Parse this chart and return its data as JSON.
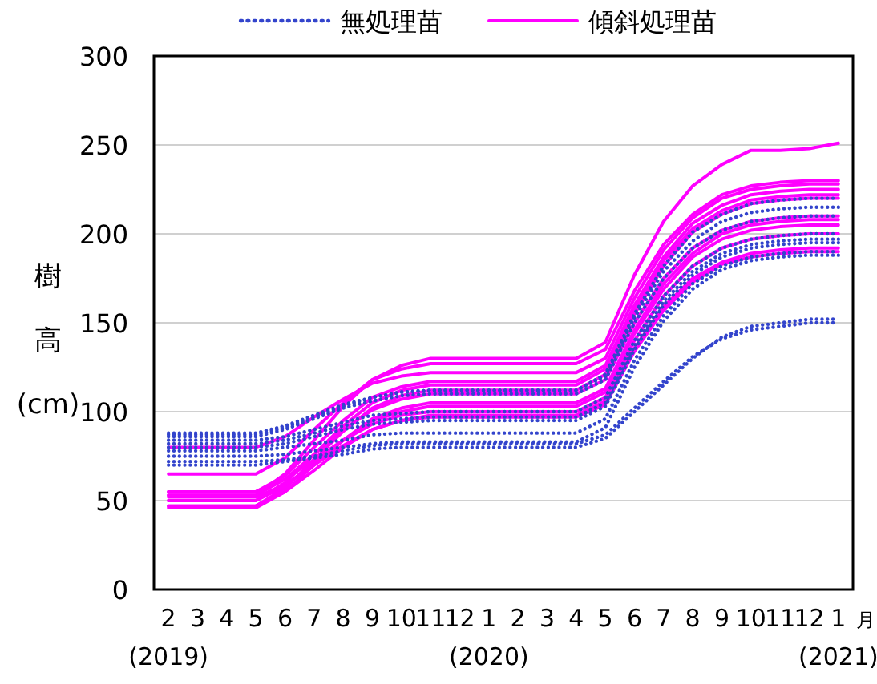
{
  "chart_data": {
    "type": "line",
    "ylabel": "樹高(cm)",
    "annotations": [
      "月"
    ],
    "categories": [
      "2\n(2019)",
      "3",
      "4",
      "5",
      "6",
      "7",
      "8",
      "9",
      "10",
      "11",
      "12",
      "1\n(2020)",
      "2",
      "3",
      "4",
      "5",
      "6",
      "7",
      "8",
      "9",
      "10",
      "11",
      "12",
      "1\n(2021)"
    ],
    "ylim": [
      0,
      300
    ],
    "yticks": [
      0,
      50,
      100,
      150,
      200,
      250,
      300
    ],
    "grid": "y",
    "legend": "top",
    "series": [
      {
        "name": "無処理苗",
        "color": "#3344cc",
        "line_style": "dotted",
        "values": [
          88,
          88,
          88,
          88,
          92,
          98,
          104,
          108,
          111,
          112,
          112,
          112,
          112,
          112,
          112,
          120,
          153,
          179,
          196,
          207,
          212,
          214,
          215,
          215
        ]
      },
      {
        "color": "#3344cc",
        "line_style": "dotted",
        "values": [
          86,
          86,
          86,
          86,
          90,
          96,
          102,
          106,
          109,
          110,
          110,
          110,
          110,
          110,
          110,
          118,
          150,
          175,
          192,
          202,
          207,
          209,
          210,
          210
        ]
      },
      {
        "color": "#3344cc",
        "line_style": "dotted",
        "values": [
          84,
          84,
          84,
          84,
          86,
          90,
          94,
          98,
          99,
          100,
          100,
          100,
          100,
          100,
          100,
          108,
          140,
          165,
          182,
          192,
          197,
          199,
          200,
          200
        ]
      },
      {
        "color": "#3344cc",
        "line_style": "dotted",
        "values": [
          82,
          82,
          82,
          82,
          84,
          88,
          92,
          95,
          96,
          97,
          97,
          97,
          97,
          97,
          97,
          105,
          137,
          162,
          179,
          189,
          194,
          196,
          197,
          197
        ]
      },
      {
        "color": "#3344cc",
        "line_style": "dotted",
        "values": [
          80,
          80,
          80,
          80,
          82,
          86,
          90,
          93,
          94,
          95,
          95,
          95,
          95,
          95,
          95,
          103,
          135,
          160,
          177,
          187,
          192,
          194,
          195,
          195
        ]
      },
      {
        "color": "#3344cc",
        "line_style": "dotted",
        "values": [
          78,
          78,
          78,
          78,
          80,
          82,
          84,
          87,
          88,
          88,
          88,
          88,
          88,
          88,
          88,
          96,
          129,
          154,
          172,
          182,
          187,
          189,
          190,
          190
        ]
      },
      {
        "color": "#3344cc",
        "line_style": "dotted",
        "values": [
          75,
          75,
          75,
          75,
          76,
          78,
          80,
          82,
          83,
          83,
          83,
          83,
          83,
          83,
          83,
          91,
          125,
          151,
          169,
          180,
          185,
          187,
          188,
          188
        ]
      },
      {
        "color": "#3344cc",
        "line_style": "dotted",
        "values": [
          70,
          70,
          70,
          70,
          72,
          74,
          76,
          79,
          80,
          80,
          80,
          80,
          80,
          80,
          80,
          85,
          100,
          115,
          130,
          142,
          148,
          150,
          152,
          152
        ]
      },
      {
        "color": "#3344cc",
        "line_style": "dotted",
        "values": [
          72,
          72,
          72,
          72,
          73,
          75,
          78,
          81,
          82,
          82,
          82,
          82,
          82,
          82,
          82,
          87,
          102,
          117,
          131,
          141,
          146,
          148,
          150,
          150
        ]
      },
      {
        "color": "#3344cc",
        "line_style": "dotted",
        "values": [
          87,
          87,
          87,
          87,
          91,
          97,
          103,
          108,
          111,
          112,
          112,
          112,
          112,
          112,
          112,
          121,
          155,
          182,
          201,
          211,
          217,
          219,
          220,
          220
        ]
      },
      {
        "name": "傾斜処理苗",
        "color": "#ff00ff",
        "line_style": "solid",
        "values": [
          53,
          53,
          53,
          53,
          65,
          84,
          103,
          118,
          126,
          130,
          130,
          130,
          130,
          130,
          130,
          139,
          177,
          207,
          227,
          239,
          247,
          247,
          248,
          251
        ]
      },
      {
        "color": "#ff00ff",
        "line_style": "solid",
        "values": [
          65,
          65,
          65,
          65,
          74,
          90,
          105,
          118,
          124,
          127,
          127,
          127,
          127,
          127,
          127,
          135,
          168,
          194,
          211,
          222,
          227,
          229,
          230,
          230
        ]
      },
      {
        "color": "#ff00ff",
        "line_style": "solid",
        "values": [
          80,
          80,
          80,
          80,
          86,
          97,
          107,
          116,
          120,
          122,
          122,
          122,
          122,
          122,
          122,
          130,
          164,
          191,
          209,
          220,
          225,
          227,
          228,
          228
        ]
      },
      {
        "color": "#ff00ff",
        "line_style": "solid",
        "values": [
          55,
          55,
          55,
          55,
          64,
          80,
          95,
          108,
          114,
          117,
          117,
          117,
          117,
          117,
          117,
          126,
          160,
          187,
          206,
          216,
          222,
          224,
          225,
          225
        ]
      },
      {
        "color": "#ff00ff",
        "line_style": "solid",
        "values": [
          50,
          50,
          50,
          50,
          60,
          76,
          92,
          105,
          112,
          115,
          115,
          115,
          115,
          115,
          115,
          124,
          158,
          185,
          203,
          213,
          219,
          221,
          222,
          222
        ]
      },
      {
        "color": "#ff00ff",
        "line_style": "solid",
        "values": [
          47,
          47,
          47,
          47,
          57,
          73,
          89,
          102,
          109,
          112,
          112,
          112,
          112,
          112,
          112,
          121,
          155,
          182,
          201,
          211,
          217,
          219,
          220,
          220
        ]
      },
      {
        "color": "#ff00ff",
        "line_style": "solid",
        "values": [
          53,
          53,
          53,
          53,
          62,
          76,
          90,
          101,
          107,
          110,
          110,
          110,
          110,
          110,
          110,
          118,
          150,
          175,
          192,
          202,
          207,
          209,
          210,
          210
        ]
      },
      {
        "color": "#ff00ff",
        "line_style": "solid",
        "values": [
          46,
          46,
          46,
          46,
          55,
          70,
          84,
          96,
          102,
          105,
          105,
          105,
          105,
          105,
          105,
          113,
          146,
          172,
          189,
          200,
          205,
          207,
          208,
          208
        ]
      },
      {
        "color": "#ff00ff",
        "line_style": "solid",
        "values": [
          50,
          50,
          50,
          50,
          58,
          71,
          84,
          95,
          100,
          103,
          103,
          103,
          103,
          103,
          103,
          111,
          144,
          169,
          187,
          197,
          202,
          204,
          205,
          205
        ]
      },
      {
        "color": "#ff00ff",
        "line_style": "solid",
        "values": [
          55,
          55,
          55,
          55,
          62,
          73,
          84,
          93,
          98,
          100,
          100,
          100,
          100,
          100,
          100,
          108,
          140,
          165,
          182,
          192,
          197,
          199,
          200,
          200
        ]
      },
      {
        "color": "#ff00ff",
        "line_style": "solid",
        "values": [
          47,
          47,
          47,
          47,
          55,
          67,
          80,
          90,
          95,
          98,
          98,
          98,
          98,
          98,
          98,
          106,
          136,
          159,
          175,
          184,
          189,
          191,
          192,
          192
        ]
      },
      {
        "color": "#ff00ff",
        "line_style": "solid",
        "values": [
          52,
          52,
          52,
          52,
          59,
          70,
          81,
          90,
          95,
          97,
          97,
          97,
          97,
          97,
          97,
          104,
          134,
          157,
          173,
          183,
          187,
          189,
          190,
          190
        ]
      }
    ]
  }
}
